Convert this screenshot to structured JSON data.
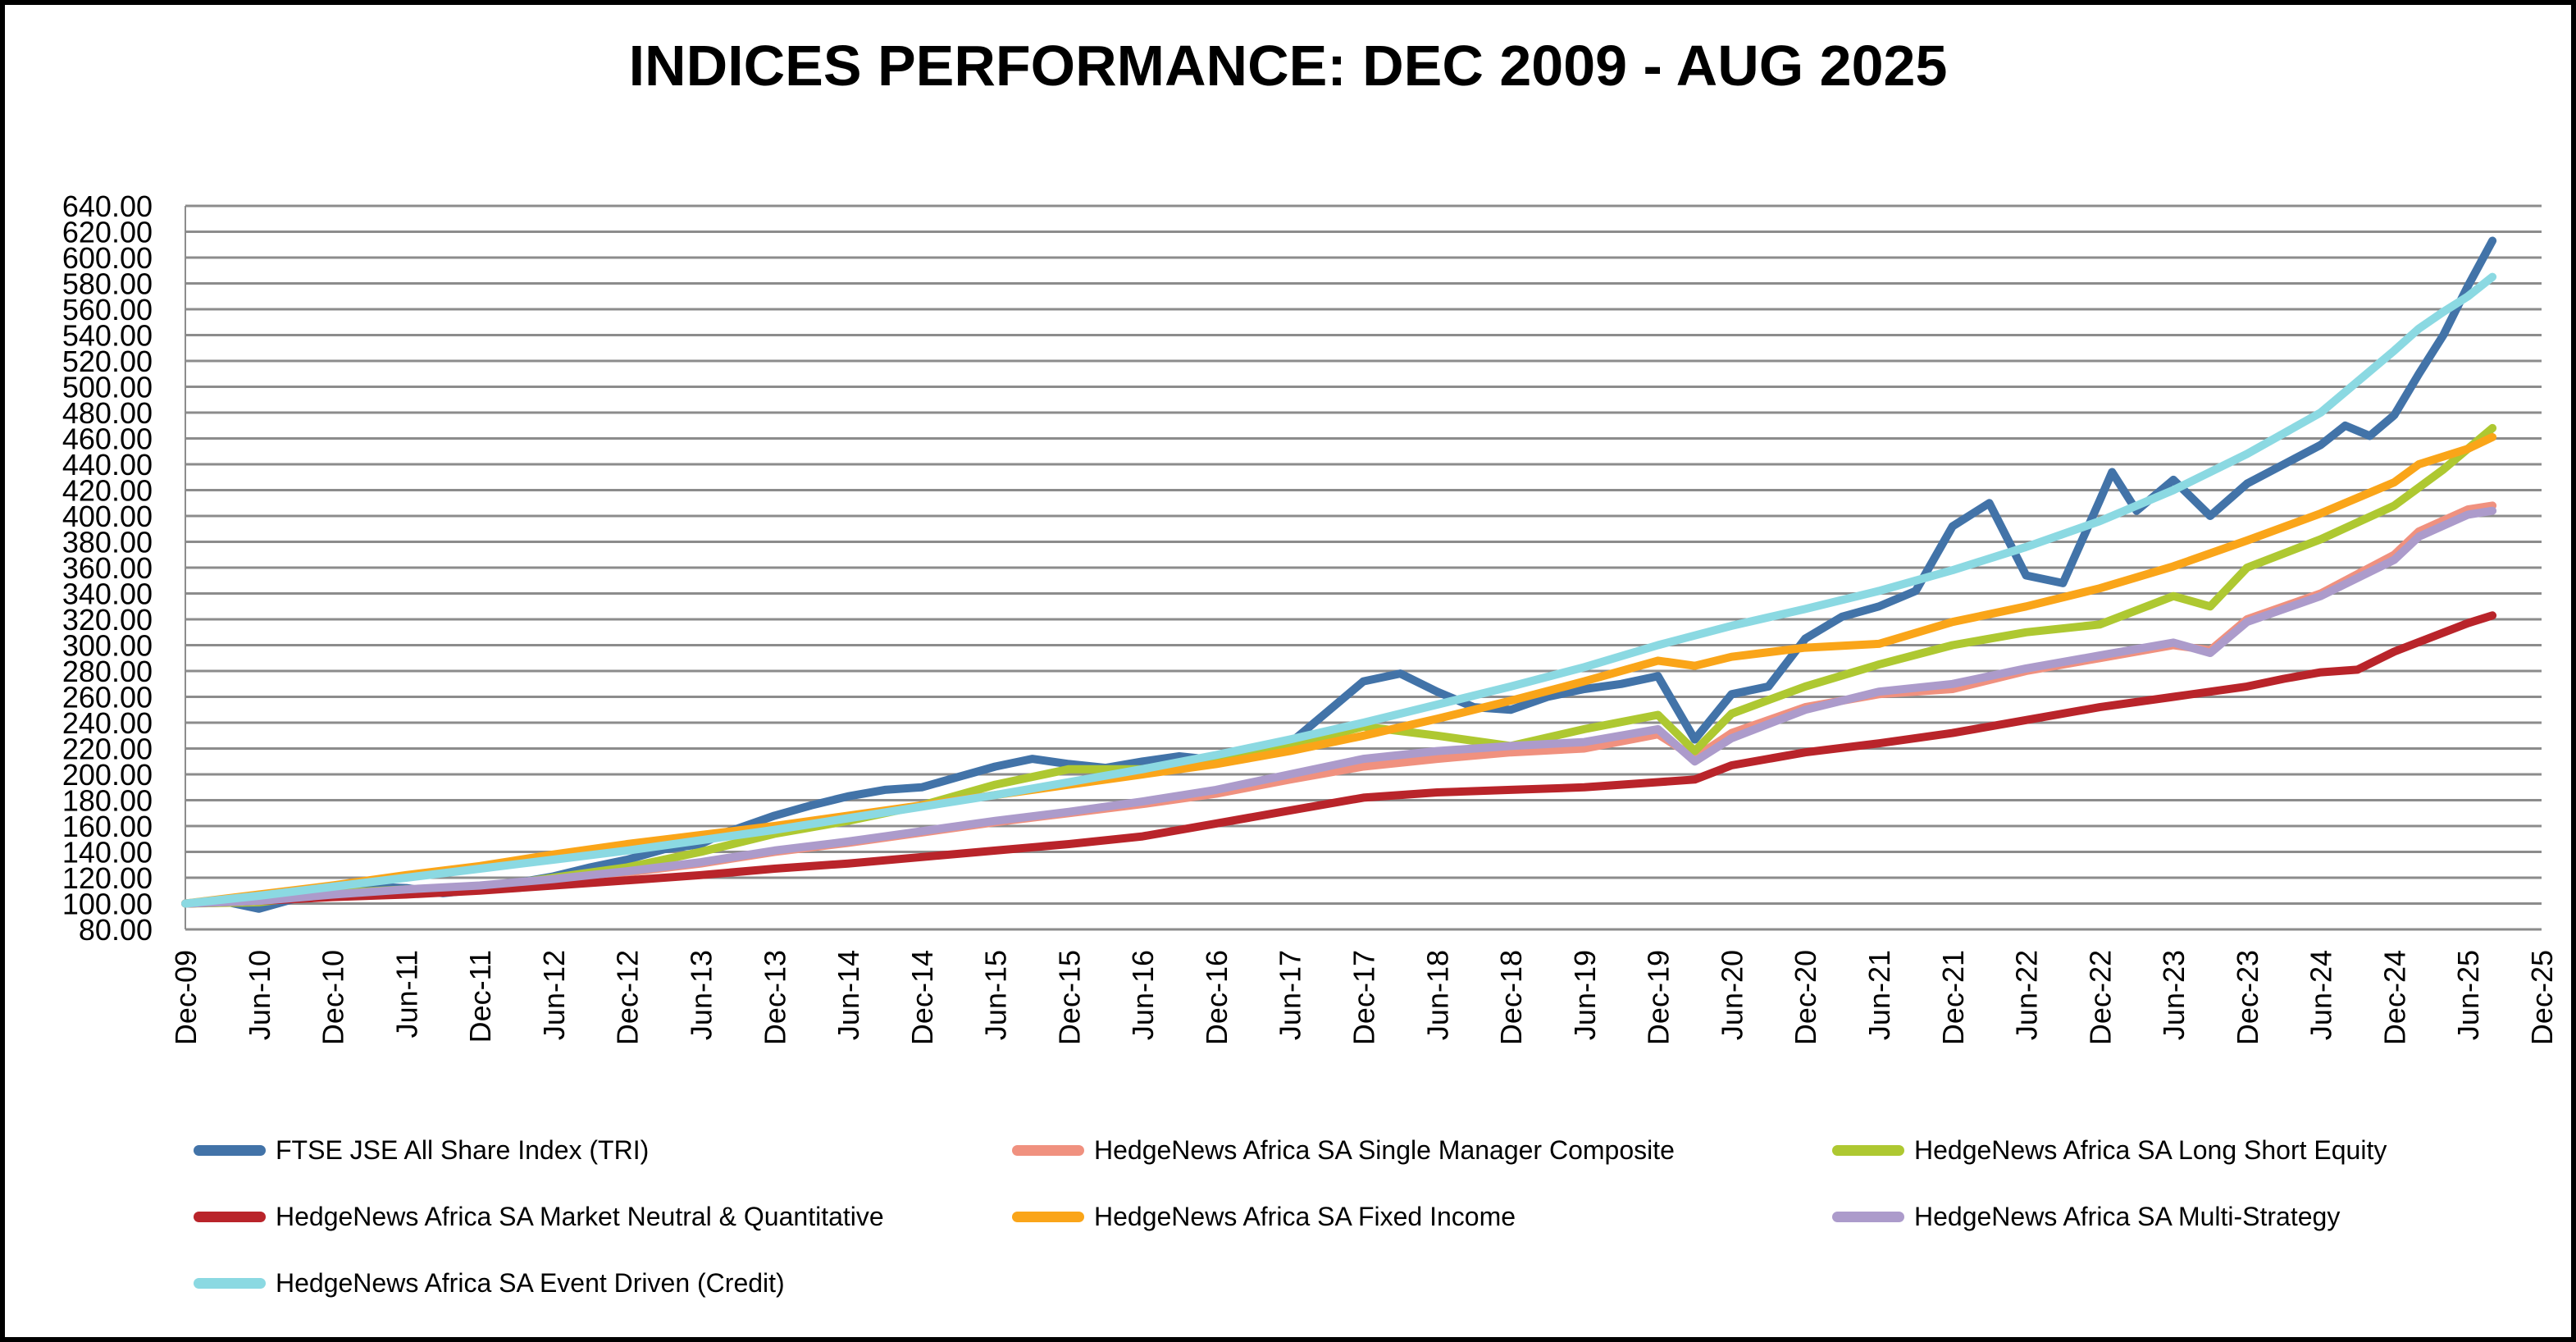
{
  "title": "INDICES PERFORMANCE: DEC 2009 - AUG 2025",
  "chart_data": {
    "type": "line",
    "title": "INDICES PERFORMANCE: DEC 2009 - AUG 2025",
    "grid": true,
    "legend_position": "bottom",
    "x_axis": {
      "unit": "month",
      "start_label": "Dec-09",
      "end_label": "Dec-25",
      "tick_interval_months": 6,
      "total_months": 192,
      "tick_labels": [
        "Dec-09",
        "Jun-10",
        "Dec-10",
        "Jun-11",
        "Dec-11",
        "Jun-12",
        "Dec-12",
        "Jun-13",
        "Dec-13",
        "Jun-14",
        "Dec-14",
        "Jun-15",
        "Dec-15",
        "Jun-16",
        "Dec-16",
        "Jun-17",
        "Dec-17",
        "Jun-18",
        "Dec-18",
        "Jun-19",
        "Dec-19",
        "Jun-20",
        "Dec-20",
        "Jun-21",
        "Dec-21",
        "Jun-22",
        "Dec-22",
        "Jun-23",
        "Dec-23",
        "Jun-24",
        "Dec-24",
        "Jun-25",
        "Dec-25"
      ]
    },
    "y_axis": {
      "min": 80,
      "max": 640,
      "step": 20,
      "label_format": "2-decimals",
      "base_value": 100
    },
    "grid_color": "#8C8C8C",
    "series": [
      {
        "name": "FTSE JSE All Share Index (TRI)",
        "color": "#4273A8",
        "points": [
          [
            0,
            100
          ],
          [
            3,
            102
          ],
          [
            6,
            96
          ],
          [
            9,
            104
          ],
          [
            12,
            110
          ],
          [
            15,
            113
          ],
          [
            18,
            112
          ],
          [
            21,
            108
          ],
          [
            24,
            111
          ],
          [
            27,
            116
          ],
          [
            30,
            121
          ],
          [
            33,
            128
          ],
          [
            36,
            134
          ],
          [
            39,
            142
          ],
          [
            42,
            146
          ],
          [
            44,
            155
          ],
          [
            45,
            158
          ],
          [
            48,
            168
          ],
          [
            51,
            176
          ],
          [
            54,
            183
          ],
          [
            57,
            188
          ],
          [
            60,
            190
          ],
          [
            63,
            198
          ],
          [
            66,
            206
          ],
          [
            69,
            212
          ],
          [
            72,
            208
          ],
          [
            75,
            205
          ],
          [
            78,
            210
          ],
          [
            81,
            214
          ],
          [
            84,
            211
          ],
          [
            87,
            218
          ],
          [
            90,
            224
          ],
          [
            93,
            248
          ],
          [
            96,
            272
          ],
          [
            99,
            278
          ],
          [
            102,
            264
          ],
          [
            105,
            252
          ],
          [
            108,
            250
          ],
          [
            111,
            260
          ],
          [
            114,
            266
          ],
          [
            117,
            270
          ],
          [
            120,
            276
          ],
          [
            123,
            227
          ],
          [
            126,
            262
          ],
          [
            129,
            268
          ],
          [
            132,
            305
          ],
          [
            135,
            322
          ],
          [
            138,
            330
          ],
          [
            141,
            342
          ],
          [
            144,
            392
          ],
          [
            147,
            410
          ],
          [
            150,
            354
          ],
          [
            153,
            348
          ],
          [
            156,
            412
          ],
          [
            157,
            434
          ],
          [
            159,
            404
          ],
          [
            162,
            428
          ],
          [
            165,
            400
          ],
          [
            168,
            425
          ],
          [
            171,
            440
          ],
          [
            174,
            455
          ],
          [
            176,
            470
          ],
          [
            178,
            462
          ],
          [
            180,
            478
          ],
          [
            182,
            510
          ],
          [
            184,
            540
          ],
          [
            186,
            578
          ],
          [
            188,
            613
          ]
        ]
      },
      {
        "name": "HedgeNews Africa SA Single Manager Composite",
        "color": "#F0917F",
        "points": [
          [
            0,
            100
          ],
          [
            6,
            102
          ],
          [
            12,
            107
          ],
          [
            18,
            110
          ],
          [
            24,
            113
          ],
          [
            30,
            118
          ],
          [
            36,
            124
          ],
          [
            42,
            131
          ],
          [
            48,
            140
          ],
          [
            54,
            147
          ],
          [
            60,
            155
          ],
          [
            66,
            163
          ],
          [
            72,
            170
          ],
          [
            78,
            177
          ],
          [
            84,
            185
          ],
          [
            90,
            196
          ],
          [
            96,
            206
          ],
          [
            102,
            212
          ],
          [
            108,
            217
          ],
          [
            114,
            220
          ],
          [
            120,
            231
          ],
          [
            123,
            213
          ],
          [
            126,
            232
          ],
          [
            132,
            252
          ],
          [
            138,
            262
          ],
          [
            144,
            266
          ],
          [
            150,
            280
          ],
          [
            156,
            290
          ],
          [
            162,
            300
          ],
          [
            165,
            296
          ],
          [
            168,
            320
          ],
          [
            174,
            340
          ],
          [
            180,
            370
          ],
          [
            182,
            388
          ],
          [
            186,
            405
          ],
          [
            188,
            408
          ]
        ]
      },
      {
        "name": "HedgeNews Africa SA Long Short Equity",
        "color": "#AEC831",
        "points": [
          [
            0,
            100
          ],
          [
            6,
            101
          ],
          [
            12,
            108
          ],
          [
            18,
            111
          ],
          [
            24,
            112
          ],
          [
            30,
            120
          ],
          [
            36,
            128
          ],
          [
            42,
            140
          ],
          [
            48,
            154
          ],
          [
            54,
            164
          ],
          [
            60,
            176
          ],
          [
            66,
            192
          ],
          [
            72,
            204
          ],
          [
            78,
            204
          ],
          [
            84,
            214
          ],
          [
            90,
            222
          ],
          [
            96,
            237
          ],
          [
            102,
            230
          ],
          [
            108,
            222
          ],
          [
            114,
            235
          ],
          [
            120,
            246
          ],
          [
            123,
            218
          ],
          [
            126,
            247
          ],
          [
            132,
            268
          ],
          [
            138,
            285
          ],
          [
            144,
            300
          ],
          [
            150,
            310
          ],
          [
            156,
            316
          ],
          [
            162,
            338
          ],
          [
            165,
            330
          ],
          [
            168,
            360
          ],
          [
            174,
            382
          ],
          [
            180,
            408
          ],
          [
            184,
            436
          ],
          [
            186,
            452
          ],
          [
            188,
            468
          ]
        ]
      },
      {
        "name": "HedgeNews Africa SA Market Neutral & Quantitative",
        "color": "#B9242A",
        "points": [
          [
            0,
            100
          ],
          [
            6,
            102
          ],
          [
            12,
            105
          ],
          [
            18,
            107
          ],
          [
            24,
            110
          ],
          [
            30,
            114
          ],
          [
            36,
            118
          ],
          [
            42,
            122
          ],
          [
            48,
            127
          ],
          [
            54,
            131
          ],
          [
            60,
            136
          ],
          [
            66,
            141
          ],
          [
            72,
            146
          ],
          [
            78,
            152
          ],
          [
            84,
            162
          ],
          [
            90,
            172
          ],
          [
            96,
            182
          ],
          [
            102,
            186
          ],
          [
            108,
            188
          ],
          [
            114,
            190
          ],
          [
            120,
            194
          ],
          [
            123,
            196
          ],
          [
            126,
            207
          ],
          [
            132,
            217
          ],
          [
            138,
            224
          ],
          [
            144,
            232
          ],
          [
            150,
            242
          ],
          [
            156,
            252
          ],
          [
            162,
            260
          ],
          [
            168,
            268
          ],
          [
            171,
            274
          ],
          [
            174,
            279
          ],
          [
            177,
            281
          ],
          [
            180,
            295
          ],
          [
            183,
            306
          ],
          [
            186,
            317
          ],
          [
            188,
            323
          ]
        ]
      },
      {
        "name": "HedgeNews Africa SA Fixed Income",
        "color": "#FAA519",
        "points": [
          [
            0,
            100
          ],
          [
            6,
            107
          ],
          [
            12,
            114
          ],
          [
            18,
            122
          ],
          [
            24,
            129
          ],
          [
            30,
            138
          ],
          [
            36,
            146
          ],
          [
            42,
            153
          ],
          [
            48,
            160
          ],
          [
            54,
            168
          ],
          [
            60,
            176
          ],
          [
            66,
            184
          ],
          [
            72,
            192
          ],
          [
            78,
            200
          ],
          [
            84,
            208
          ],
          [
            90,
            218
          ],
          [
            96,
            230
          ],
          [
            102,
            243
          ],
          [
            108,
            257
          ],
          [
            114,
            272
          ],
          [
            120,
            288
          ],
          [
            123,
            284
          ],
          [
            126,
            291
          ],
          [
            132,
            298
          ],
          [
            138,
            301
          ],
          [
            144,
            318
          ],
          [
            150,
            330
          ],
          [
            156,
            344
          ],
          [
            162,
            361
          ],
          [
            168,
            381
          ],
          [
            174,
            402
          ],
          [
            180,
            426
          ],
          [
            182,
            440
          ],
          [
            186,
            452
          ],
          [
            188,
            461
          ]
        ]
      },
      {
        "name": "HedgeNews Africa SA Multi-Strategy",
        "color": "#AC9BCB",
        "points": [
          [
            0,
            100
          ],
          [
            6,
            102
          ],
          [
            12,
            107
          ],
          [
            18,
            111
          ],
          [
            24,
            114
          ],
          [
            30,
            119
          ],
          [
            36,
            125
          ],
          [
            42,
            132
          ],
          [
            48,
            141
          ],
          [
            54,
            148
          ],
          [
            60,
            156
          ],
          [
            66,
            164
          ],
          [
            72,
            171
          ],
          [
            78,
            179
          ],
          [
            84,
            188
          ],
          [
            90,
            200
          ],
          [
            96,
            212
          ],
          [
            102,
            218
          ],
          [
            108,
            222
          ],
          [
            114,
            225
          ],
          [
            120,
            235
          ],
          [
            123,
            210
          ],
          [
            126,
            228
          ],
          [
            132,
            250
          ],
          [
            138,
            264
          ],
          [
            144,
            270
          ],
          [
            150,
            282
          ],
          [
            156,
            292
          ],
          [
            162,
            302
          ],
          [
            165,
            294
          ],
          [
            168,
            318
          ],
          [
            174,
            338
          ],
          [
            180,
            366
          ],
          [
            182,
            384
          ],
          [
            186,
            401
          ],
          [
            188,
            404
          ]
        ]
      },
      {
        "name": "HedgeNews Africa SA Event Driven (Credit)",
        "color": "#8BD9E2",
        "points": [
          [
            0,
            100
          ],
          [
            6,
            106
          ],
          [
            12,
            113
          ],
          [
            18,
            120
          ],
          [
            24,
            127
          ],
          [
            30,
            134
          ],
          [
            36,
            141
          ],
          [
            42,
            149
          ],
          [
            48,
            157
          ],
          [
            54,
            166
          ],
          [
            60,
            175
          ],
          [
            66,
            184
          ],
          [
            72,
            194
          ],
          [
            78,
            204
          ],
          [
            84,
            215
          ],
          [
            90,
            227
          ],
          [
            96,
            240
          ],
          [
            102,
            254
          ],
          [
            108,
            268
          ],
          [
            114,
            283
          ],
          [
            120,
            300
          ],
          [
            126,
            315
          ],
          [
            132,
            328
          ],
          [
            138,
            342
          ],
          [
            144,
            358
          ],
          [
            150,
            376
          ],
          [
            156,
            396
          ],
          [
            162,
            420
          ],
          [
            168,
            448
          ],
          [
            174,
            480
          ],
          [
            180,
            528
          ],
          [
            182,
            545
          ],
          [
            184,
            558
          ],
          [
            186,
            570
          ],
          [
            188,
            585
          ]
        ]
      }
    ]
  }
}
